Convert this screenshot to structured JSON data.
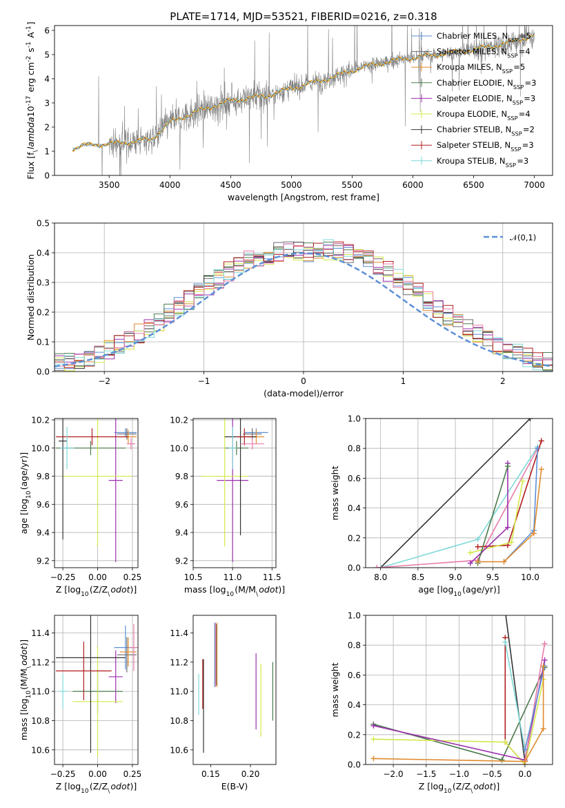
{
  "figure_title": "PLATE=1714, MJD=53521, FIBERID=0216, z=0.318",
  "series_colors": [
    "#5b8fd6",
    "#6b6b6b",
    "#e08a2e",
    "#4c7a4c",
    "#9b2fae",
    "#d4e84a",
    "#333333",
    "#b01c1c",
    "#7ed8d8",
    "#e87aa8"
  ],
  "chart_data": [
    {
      "id": "spectrum",
      "type": "line",
      "title": "PLATE=1714, MJD=53521, FIBERID=0216, z=0.318",
      "xlabel": "wavelength [Angstrom, rest frame]",
      "ylabel": "Flux [f$_\\lambda$10$^{-17}$ erg cm$^{-2}$ s$^{-1}$ A$^{-1}$]",
      "xlim": [
        3050,
        7150
      ],
      "ylim": [
        0,
        6.2
      ],
      "xticks": [
        3500,
        4000,
        4500,
        5000,
        5500,
        6000,
        6500,
        7000
      ],
      "yticks": [
        0,
        1,
        2,
        3,
        4,
        5,
        6
      ],
      "data_color": "#808080",
      "continuum": {
        "x": [
          3200,
          3300,
          3500,
          3700,
          3850,
          4000,
          4200,
          4500,
          4800,
          5000,
          5300,
          5600,
          5900,
          6200,
          6500,
          6800,
          7000
        ],
        "y": [
          1.1,
          1.25,
          1.3,
          1.4,
          1.5,
          2.2,
          2.6,
          3.1,
          3.3,
          3.6,
          4.0,
          4.5,
          4.8,
          5.0,
          5.2,
          5.5,
          5.8
        ]
      },
      "legend_location": "upper right",
      "legend": [
        "Chabrier MILES, N$_{SSP}$=5",
        "Salpeter MILES, N$_{SSP}$=4",
        "Kroupa MILES, N$_{SSP}$=5",
        "Chabrier ELODIE, N$_{SSP}$=3",
        "Salpeter ELODIE, N$_{SSP}$=3",
        "Kroupa ELODIE, N$_{SSP}$=4",
        "Chabrier STELIB, N$_{SSP}$=2",
        "Salpeter STELIB, N$_{SSP}$=3",
        "Kroupa STELIB, N$_{SSP}$=3"
      ]
    },
    {
      "id": "residuals",
      "type": "line",
      "xlabel": "(data-model)/error",
      "ylabel": "Normed distribution",
      "xlim": [
        -2.5,
        2.5
      ],
      "ylim": [
        0,
        0.5
      ],
      "xticks": [
        -2,
        -1,
        0,
        1,
        2
      ],
      "yticks": [
        0,
        0.1,
        0.2,
        0.3,
        0.4,
        0.5
      ],
      "grid": true,
      "gaussian": {
        "label": "$\\mathcal{N}(0,1)$",
        "mean": 0,
        "sigma": 1,
        "color": "#5b8fd6"
      },
      "legend_location": "upper right"
    },
    {
      "id": "age-Z",
      "type": "scatter",
      "xlabel": "Z [log$_{10}$(Z/Z$_\\odot$)]",
      "ylabel": "age  [log$_{10}$(age/yr)]",
      "xlim": [
        -0.31,
        0.29
      ],
      "ylim": [
        9.15,
        10.21
      ],
      "xticks": [
        -0.25,
        0,
        0.25
      ],
      "yticks": [
        9.2,
        9.4,
        9.6,
        9.8,
        10.0,
        10.2
      ],
      "grid": true,
      "points": [
        {
          "x": 0.2,
          "xerr": 0.08,
          "y": 10.11,
          "yerr": 0.03,
          "c": 0
        },
        {
          "x": 0.21,
          "xerr": 0.07,
          "y": 10.1,
          "yerr": 0.04,
          "c": 1
        },
        {
          "x": 0.22,
          "xerr": 0.06,
          "y": 10.08,
          "yerr": 0.05,
          "c": 2
        },
        {
          "x": -0.05,
          "xerr": 0.25,
          "y": 10.0,
          "yerr": 0.05,
          "c": 3
        },
        {
          "x": 0.13,
          "xerr": 0.05,
          "y": 9.77,
          "yerr": 0.58,
          "c": 4
        },
        {
          "x": 0.0,
          "xerr": 0.25,
          "y": 9.8,
          "yerr": 0.5,
          "c": 5
        },
        {
          "x": -0.25,
          "xerr": 0.03,
          "y": 10.05,
          "yerr": 0.7,
          "c": 6
        },
        {
          "x": -0.04,
          "xerr": 0.26,
          "y": 10.08,
          "yerr": 0.06,
          "c": 7
        },
        {
          "x": -0.22,
          "xerr": 0.05,
          "y": 10.0,
          "yerr": 0.15,
          "c": 8
        },
        {
          "x": 0.24,
          "xerr": 0.03,
          "y": 10.03,
          "yerr": 0.04,
          "c": 9
        }
      ]
    },
    {
      "id": "age-mass",
      "type": "scatter",
      "xlabel": "mass [log$_{10}$(M/M$_\\odot$)]",
      "ylabel": "",
      "xlim": [
        10.5,
        11.55
      ],
      "ylim": [
        9.15,
        10.21
      ],
      "xticks": [
        10.5,
        11.0,
        11.5
      ],
      "yticks": [
        9.2,
        9.4,
        9.6,
        9.8,
        10.0,
        10.2
      ],
      "grid": true,
      "points": [
        {
          "x": 11.3,
          "xerr": 0.15,
          "y": 10.11,
          "yerr": 0.03,
          "c": 0
        },
        {
          "x": 11.25,
          "xerr": 0.12,
          "y": 10.1,
          "yerr": 0.04,
          "c": 1
        },
        {
          "x": 11.3,
          "xerr": 0.1,
          "y": 10.08,
          "yerr": 0.05,
          "c": 2
        },
        {
          "x": 11.05,
          "xerr": 0.15,
          "y": 10.0,
          "yerr": 0.05,
          "c": 3
        },
        {
          "x": 11.0,
          "xerr": 0.2,
          "y": 9.77,
          "yerr": 0.58,
          "c": 4
        },
        {
          "x": 10.9,
          "xerr": 0.3,
          "y": 9.8,
          "yerr": 0.5,
          "c": 5
        },
        {
          "x": 11.1,
          "xerr": 0.2,
          "y": 10.08,
          "yerr": 0.7,
          "c": 6
        },
        {
          "x": 11.15,
          "xerr": 0.1,
          "y": 10.08,
          "yerr": 0.06,
          "c": 7
        },
        {
          "x": 11.0,
          "xerr": 0.05,
          "y": 10.0,
          "yerr": 0.15,
          "c": 8
        },
        {
          "x": 11.25,
          "xerr": 0.15,
          "y": 10.03,
          "yerr": 0.04,
          "c": 9
        }
      ]
    },
    {
      "id": "mass-weight-age",
      "type": "line",
      "xlabel": "age  [log$_{10}$(age/yr)]",
      "ylabel": "mass weight",
      "xlim": [
        7.8,
        10.3
      ],
      "ylim": [
        0,
        1.0
      ],
      "xticks": [
        8.0,
        8.5,
        9.0,
        9.5,
        10.0
      ],
      "yticks": [
        0,
        0.2,
        0.4,
        0.6,
        0.8,
        1.0
      ],
      "grid": true,
      "series": [
        {
          "c": 6,
          "x": [
            8.0,
            10.0
          ],
          "y": [
            0.0,
            1.0
          ]
        },
        {
          "c": 8,
          "x": [
            8.0,
            9.3,
            10.1
          ],
          "y": [
            0.0,
            0.19,
            0.81
          ]
        },
        {
          "c": 9,
          "x": [
            7.95,
            9.3,
            10.1
          ],
          "y": [
            0.0,
            0.05,
            0.8
          ]
        },
        {
          "c": 7,
          "x": [
            9.3,
            9.7,
            10.15
          ],
          "y": [
            0.14,
            0.15,
            0.85
          ]
        },
        {
          "c": 5,
          "x": [
            9.2,
            9.75,
            9.9
          ],
          "y": [
            0.1,
            0.17,
            0.58
          ]
        },
        {
          "c": 4,
          "x": [
            9.2,
            9.7,
            9.7
          ],
          "y": [
            0.03,
            0.27,
            0.7
          ]
        },
        {
          "c": 3,
          "x": [
            9.3,
            9.7
          ],
          "y": [
            0.03,
            0.68
          ]
        },
        {
          "c": 0,
          "x": [
            9.65,
            10.05,
            10.1
          ],
          "y": [
            0.04,
            0.25,
            0.8
          ]
        },
        {
          "c": 2,
          "x": [
            9.3,
            9.65,
            10.05,
            10.15
          ],
          "y": [
            0.04,
            0.04,
            0.23,
            0.66
          ]
        }
      ]
    },
    {
      "id": "mass-Z",
      "type": "scatter",
      "xlabel": "Z [log$_{10}$(Z/Z$_\\odot$)]",
      "ylabel": "mass [log$_{10}$(M/M$_\\odot$)]",
      "xlim": [
        -0.31,
        0.29
      ],
      "ylim": [
        10.5,
        11.52
      ],
      "xticks": [
        -0.25,
        0,
        0.25
      ],
      "yticks": [
        10.6,
        10.8,
        11.0,
        11.2,
        11.4
      ],
      "grid": true,
      "points": [
        {
          "x": 0.2,
          "xerr": 0.08,
          "y": 11.3,
          "yerr": 0.15,
          "c": 0
        },
        {
          "x": 0.21,
          "xerr": 0.07,
          "y": 11.25,
          "yerr": 0.12,
          "c": 1
        },
        {
          "x": 0.22,
          "xerr": 0.06,
          "y": 11.27,
          "yerr": 0.1,
          "c": 2
        },
        {
          "x": 0.0,
          "xerr": 0.18,
          "y": 11.0,
          "yerr": 0.15,
          "c": 3
        },
        {
          "x": 0.13,
          "xerr": 0.05,
          "y": 11.1,
          "yerr": 0.18,
          "c": 4
        },
        {
          "x": 0.0,
          "xerr": 0.18,
          "y": 10.93,
          "yerr": 0.38,
          "c": 5
        },
        {
          "x": -0.05,
          "xerr": 0.25,
          "y": 11.23,
          "yerr": 0.65,
          "c": 6
        },
        {
          "x": -0.1,
          "xerr": 0.2,
          "y": 11.14,
          "yerr": 0.2,
          "c": 7
        },
        {
          "x": -0.25,
          "xerr": 0.03,
          "y": 11.0,
          "yerr": 0.12,
          "c": 8
        },
        {
          "x": 0.26,
          "xerr": 0.03,
          "y": 11.3,
          "yerr": 0.16,
          "c": 9
        }
      ]
    },
    {
      "id": "mass-EBV",
      "type": "scatter",
      "xlabel": "E(B-V)",
      "ylabel": "",
      "xlim": [
        0.128,
        0.232
      ],
      "ylim": [
        10.5,
        11.52
      ],
      "xticks": [
        0.15,
        0.2
      ],
      "yticks": [
        10.6,
        10.8,
        11.0,
        11.2,
        11.4
      ],
      "grid": false,
      "points": [
        {
          "x": 0.155,
          "y": 11.25,
          "yerr": 0.22,
          "c": 0
        },
        {
          "x": 0.157,
          "y": 11.25,
          "yerr": 0.21,
          "c": 1
        },
        {
          "x": 0.158,
          "y": 11.25,
          "yerr": 0.22,
          "c": 2
        },
        {
          "x": 0.228,
          "y": 11.0,
          "yerr": 0.2,
          "c": 3
        },
        {
          "x": 0.207,
          "y": 11.0,
          "yerr": 0.26,
          "c": 4
        },
        {
          "x": 0.213,
          "y": 10.94,
          "yerr": 0.25,
          "c": 5
        },
        {
          "x": 0.141,
          "y": 10.9,
          "yerr": 0.32,
          "c": 6
        },
        {
          "x": 0.14,
          "y": 11.05,
          "yerr": 0.17,
          "c": 7
        },
        {
          "x": 0.135,
          "y": 10.98,
          "yerr": 0.14,
          "c": 8
        },
        {
          "x": 0.156,
          "y": 11.25,
          "yerr": 0.22,
          "c": 9
        }
      ]
    },
    {
      "id": "mass-weight-Z",
      "type": "line",
      "xlabel": "Z [log$_{10}$(Z/Z$_\\odot$)]",
      "ylabel": "mass weight",
      "xlim": [
        -2.42,
        0.42
      ],
      "ylim": [
        0,
        1.0
      ],
      "xticks": [
        -2.0,
        -1.5,
        -1.0,
        -0.5,
        0.0
      ],
      "yticks": [
        0,
        0.2,
        0.4,
        0.6,
        0.8,
        1.0
      ],
      "grid": true,
      "series": [
        {
          "c": 6,
          "x": [
            -0.35,
            0.0
          ],
          "y": [
            1.2,
            0.02
          ]
        },
        {
          "c": 7,
          "x": [
            -0.3,
            -0.3,
            0.0
          ],
          "y": [
            0.85,
            0.15,
            0.0
          ]
        },
        {
          "c": 3,
          "x": [
            -2.3,
            -0.35,
            0.3
          ],
          "y": [
            0.27,
            0.03,
            0.65
          ]
        },
        {
          "c": 5,
          "x": [
            -2.3,
            -0.3,
            0.0,
            0.28
          ],
          "y": [
            0.17,
            0.15,
            0.0,
            0.57
          ]
        },
        {
          "c": 4,
          "x": [
            -2.3,
            0.0,
            0.3
          ],
          "y": [
            0.26,
            0.03,
            0.7
          ]
        },
        {
          "c": 8,
          "x": [
            -0.3,
            0.0
          ],
          "y": [
            0.82,
            0.1
          ]
        },
        {
          "c": 9,
          "x": [
            0.0,
            0.3
          ],
          "y": [
            0.02,
            0.81
          ]
        },
        {
          "c": 0,
          "x": [
            0.0,
            0.3
          ],
          "y": [
            0.1,
            0.66
          ]
        },
        {
          "c": 2,
          "x": [
            -2.3,
            0.0,
            0.28,
            0.28
          ],
          "y": [
            0.04,
            0.02,
            0.24,
            0.66
          ]
        }
      ]
    }
  ]
}
